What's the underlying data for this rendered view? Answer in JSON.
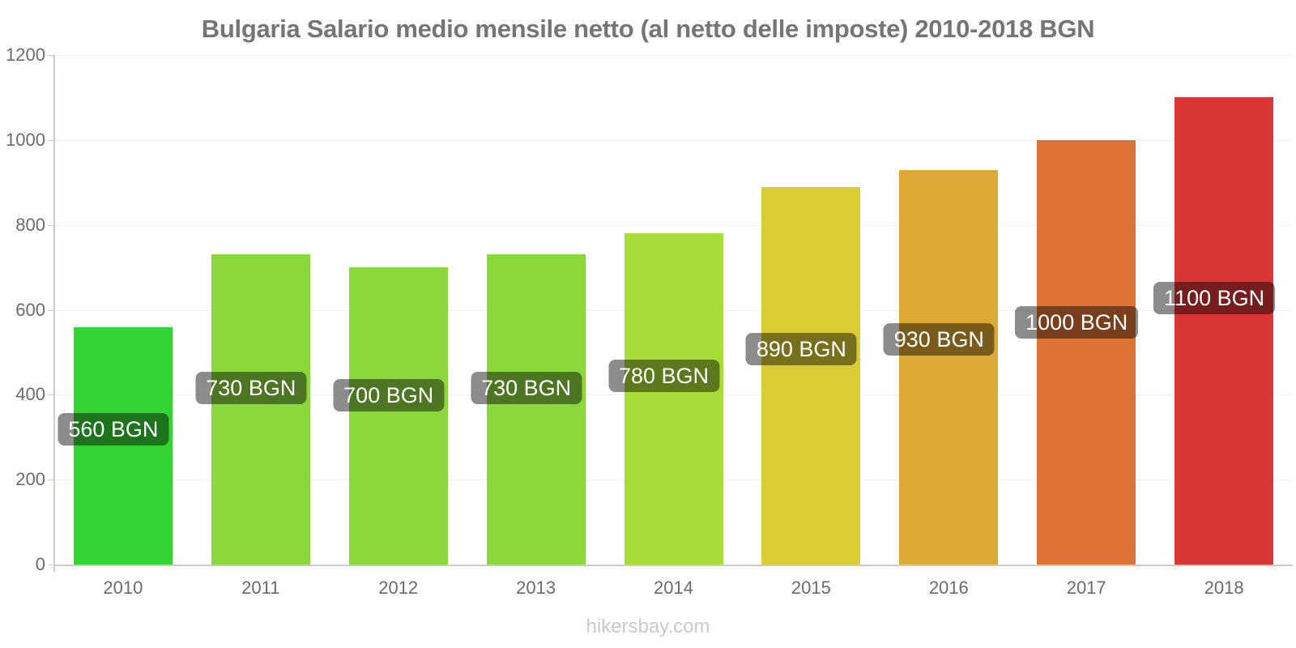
{
  "title": "Bulgaria Salario medio mensile netto (al netto delle imposte) 2010-2018 BGN",
  "footer": "hikersbay.com",
  "colors": {
    "title_text": "#757575",
    "axis_line": "#cfcac4",
    "gridline": "#f2f2f2",
    "tick_label": "#6b6b6b",
    "value_label_bg": "rgba(0,0,0,0.45)",
    "value_label_text": "#ffffff",
    "footer_text": "#cbcbc3"
  },
  "chart_data": {
    "type": "bar",
    "title": "Bulgaria Salario medio mensile netto (al netto delle imposte) 2010-2018 BGN",
    "categories": [
      "2010",
      "2011",
      "2012",
      "2013",
      "2014",
      "2015",
      "2016",
      "2017",
      "2018"
    ],
    "values": [
      560,
      730,
      700,
      730,
      780,
      890,
      930,
      1000,
      1100
    ],
    "value_labels": [
      "560 BGN",
      "730 BGN",
      "700 BGN",
      "730 BGN",
      "780 BGN",
      "890 BGN",
      "930 BGN",
      "1000 BGN",
      "1100 BGN"
    ],
    "bar_colors": [
      "#35d435",
      "#8bd83c",
      "#8bd83c",
      "#8bd83c",
      "#a8dc38",
      "#dbcb35",
      "#dda833",
      "#dd7335",
      "#d93636"
    ],
    "xlabel": "",
    "ylabel": "",
    "ylim": [
      0,
      1200
    ],
    "yticks": [
      0,
      200,
      400,
      600,
      800,
      1000,
      1200
    ],
    "grid": true,
    "legend": "none",
    "unit": "BGN"
  }
}
